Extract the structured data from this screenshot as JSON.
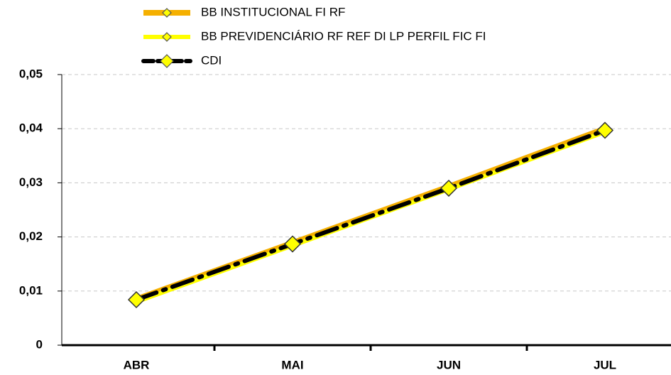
{
  "chart_data": {
    "type": "line",
    "categories": [
      "ABR",
      "MAI",
      "JUN",
      "JUL"
    ],
    "series": [
      {
        "name": "BB INSTITUCIONAL FI RF",
        "color": "#f5b000",
        "values": [
          0.0085,
          0.0189,
          0.0293,
          0.04
        ]
      },
      {
        "name": "BB PREVIDENCIÁRIO RF REF DI LP PERFIL FIC FI",
        "color": "#ffff00",
        "values": [
          0.008,
          0.0184,
          0.0288,
          0.0394
        ]
      },
      {
        "name": "CDI",
        "color": "#000000",
        "values": [
          0.0084,
          0.0187,
          0.029,
          0.0397
        ]
      }
    ],
    "ylim": [
      0,
      0.05
    ],
    "yticks": [
      0,
      {
        "value": 0.01,
        "label": "0,01"
      },
      {
        "value": 0.02,
        "label": "0,02"
      },
      {
        "value": 0.03,
        "label": "0,03"
      },
      {
        "value": 0.04,
        "label": "0,04"
      },
      {
        "value": 0.05,
        "label": "0,05"
      }
    ],
    "grid": true
  }
}
